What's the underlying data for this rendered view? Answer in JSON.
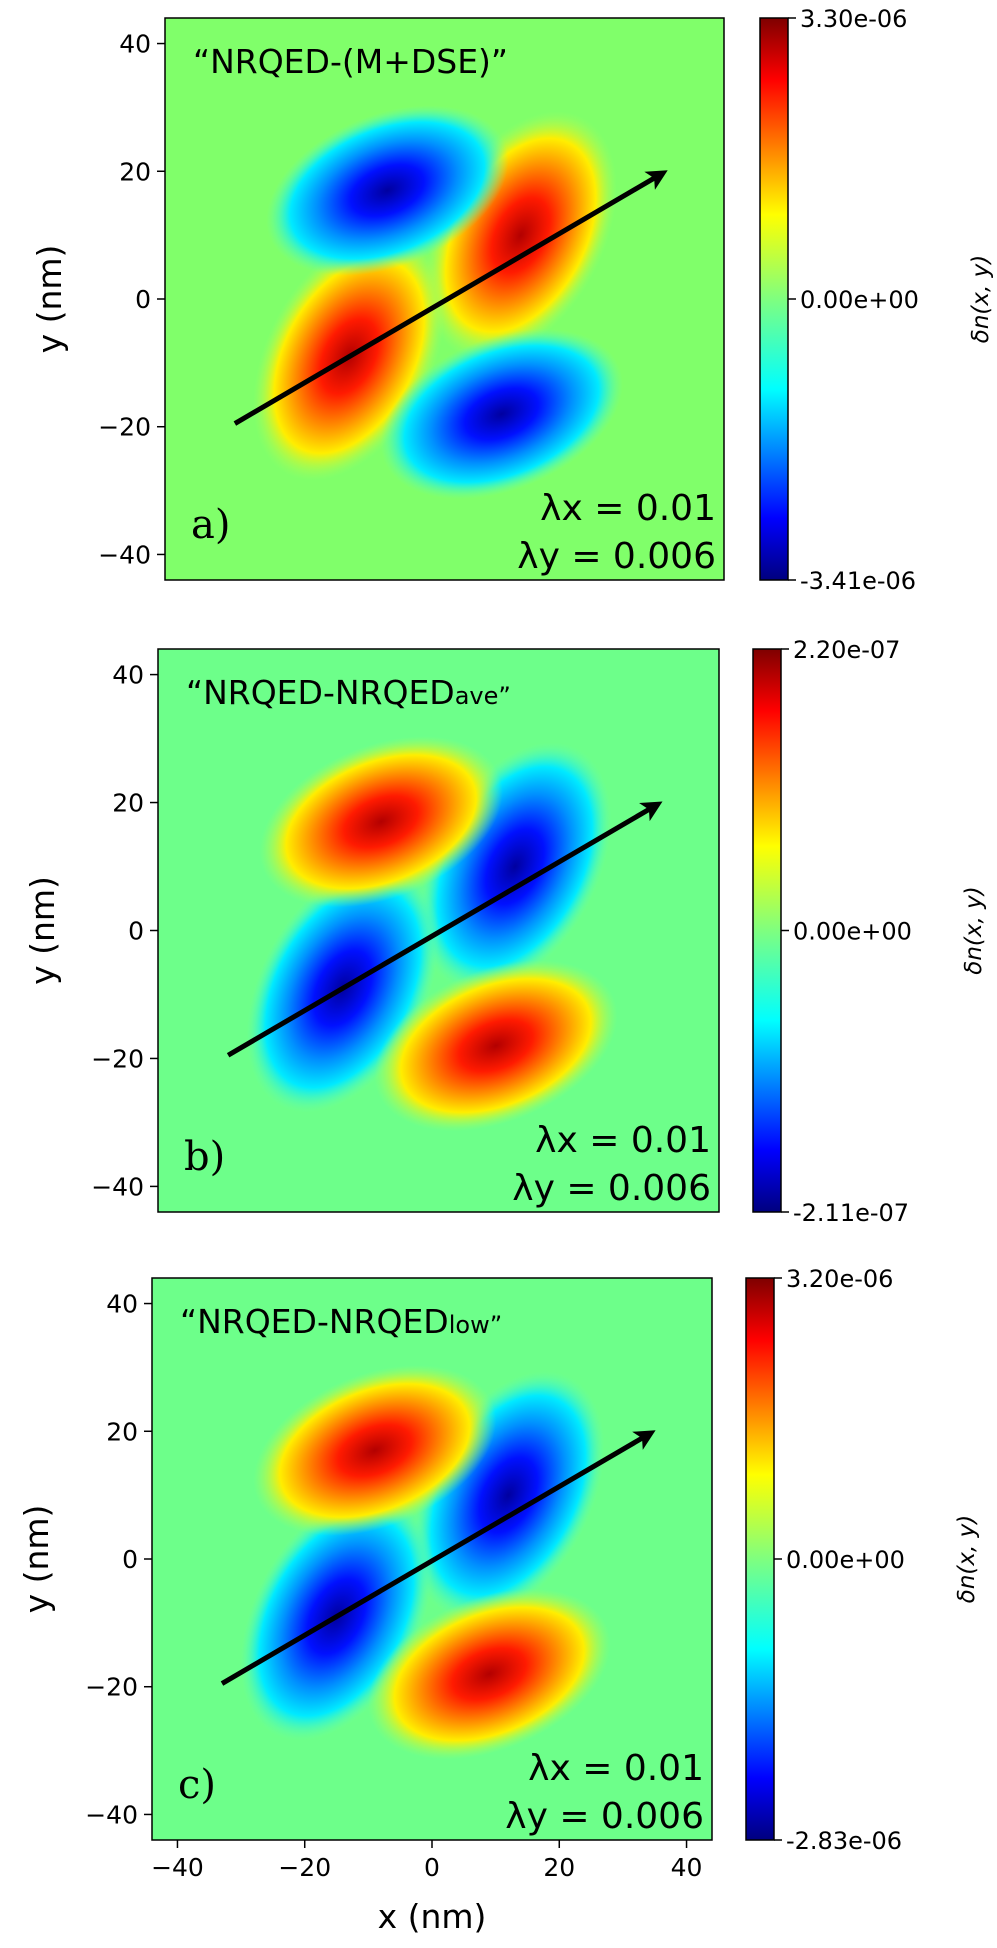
{
  "chart_data": [
    {
      "type": "heatmap",
      "panel_label": "a)",
      "title": "“NRQED-(M+DSE)”",
      "title_main": "“NRQED-(M+DSE)”",
      "title_sub": "",
      "ylabel": "y (nm)",
      "xlabel": "",
      "xlim": [
        -44,
        44
      ],
      "ylim": [
        -44,
        44
      ],
      "yticks": [
        -40,
        -20,
        0,
        20,
        40
      ],
      "ytick_labels": [
        "−40",
        "−20",
        "0",
        "20",
        "40"
      ],
      "xticks": [],
      "xtick_labels": [],
      "colorbar": {
        "label": "δn(x, y)",
        "max_label": "3.30e-06",
        "mid_label": "0.00e+00",
        "min_label": "-3.41e-06",
        "max": 3.3e-06,
        "min": -3.41e-06
      },
      "sign": 1,
      "lambda_x_label": "λx = 0.01",
      "lambda_y_label": "λy = 0.006",
      "lambda_x": 0.01,
      "lambda_y": 0.006,
      "arrow": {
        "from": [
          -33,
          -19.5
        ],
        "to": [
          34,
          19.5
        ]
      },
      "lobes": [
        {
          "x": 12,
          "y": 10,
          "sign": "positive"
        },
        {
          "x": -15,
          "y": -9,
          "sign": "positive"
        },
        {
          "x": -9,
          "y": 17,
          "sign": "negative"
        },
        {
          "x": 9,
          "y": -18,
          "sign": "negative"
        }
      ]
    },
    {
      "type": "heatmap",
      "panel_label": "b)",
      "title": "“NRQED-NRQEDave”",
      "title_main": "“NRQED-NRQED",
      "title_sub": "ave”",
      "ylabel": "y (nm)",
      "xlabel": "",
      "xlim": [
        -44,
        44
      ],
      "ylim": [
        -44,
        44
      ],
      "yticks": [
        -40,
        -20,
        0,
        20,
        40
      ],
      "ytick_labels": [
        "−40",
        "−20",
        "0",
        "20",
        "40"
      ],
      "xticks": [],
      "xtick_labels": [],
      "colorbar": {
        "label": "δn(x, y)",
        "max_label": "2.20e-07",
        "mid_label": "0.00e+00",
        "min_label": "-2.11e-07",
        "max": 2.2e-07,
        "min": -2.11e-07
      },
      "sign": -1,
      "lambda_x_label": "λx = 0.01",
      "lambda_y_label": "λy = 0.006",
      "lambda_x": 0.01,
      "lambda_y": 0.006,
      "arrow": {
        "from": [
          -33,
          -19.5
        ],
        "to": [
          34,
          19.5
        ]
      },
      "lobes": [
        {
          "x": 12,
          "y": 10,
          "sign": "negative"
        },
        {
          "x": -15,
          "y": -9,
          "sign": "negative"
        },
        {
          "x": -9,
          "y": 17,
          "sign": "positive"
        },
        {
          "x": 9,
          "y": -18,
          "sign": "positive"
        }
      ]
    },
    {
      "type": "heatmap",
      "panel_label": "c)",
      "title": "“NRQED-NRQEDlow”",
      "title_main": "“NRQED-NRQED",
      "title_sub": "low”",
      "ylabel": "y (nm)",
      "xlabel": "x (nm)",
      "xlim": [
        -44,
        44
      ],
      "ylim": [
        -44,
        44
      ],
      "yticks": [
        -40,
        -20,
        0,
        20,
        40
      ],
      "ytick_labels": [
        "−40",
        "−20",
        "0",
        "20",
        "40"
      ],
      "xticks": [
        -40,
        -20,
        0,
        20,
        40
      ],
      "xtick_labels": [
        "−40",
        "−20",
        "0",
        "20",
        "40"
      ],
      "colorbar": {
        "label": "δn(x, y)",
        "max_label": "3.20e-06",
        "mid_label": "0.00e+00",
        "min_label": "-2.83e-06",
        "max": 3.2e-06,
        "min": -2.83e-06
      },
      "sign": -1,
      "lambda_x_label": "λx = 0.01",
      "lambda_y_label": "λy = 0.006",
      "lambda_x": 0.01,
      "lambda_y": 0.006,
      "arrow": {
        "from": [
          -33,
          -19.5
        ],
        "to": [
          34,
          19.5
        ]
      },
      "lobes": [
        {
          "x": 12,
          "y": 10,
          "sign": "negative"
        },
        {
          "x": -15,
          "y": -9,
          "sign": "negative"
        },
        {
          "x": -9,
          "y": 17,
          "sign": "positive"
        },
        {
          "x": 9,
          "y": -18,
          "sign": "positive"
        }
      ]
    }
  ],
  "colors": {
    "jet": [
      "#00007f",
      "#0000ff",
      "#007fff",
      "#00ffff",
      "#7fff7f",
      "#ffff00",
      "#ff7f00",
      "#ff0000",
      "#7f0000"
    ],
    "background_a": "#80ff6a",
    "background_bc": "#6dff8a",
    "arrow": "#000000"
  }
}
